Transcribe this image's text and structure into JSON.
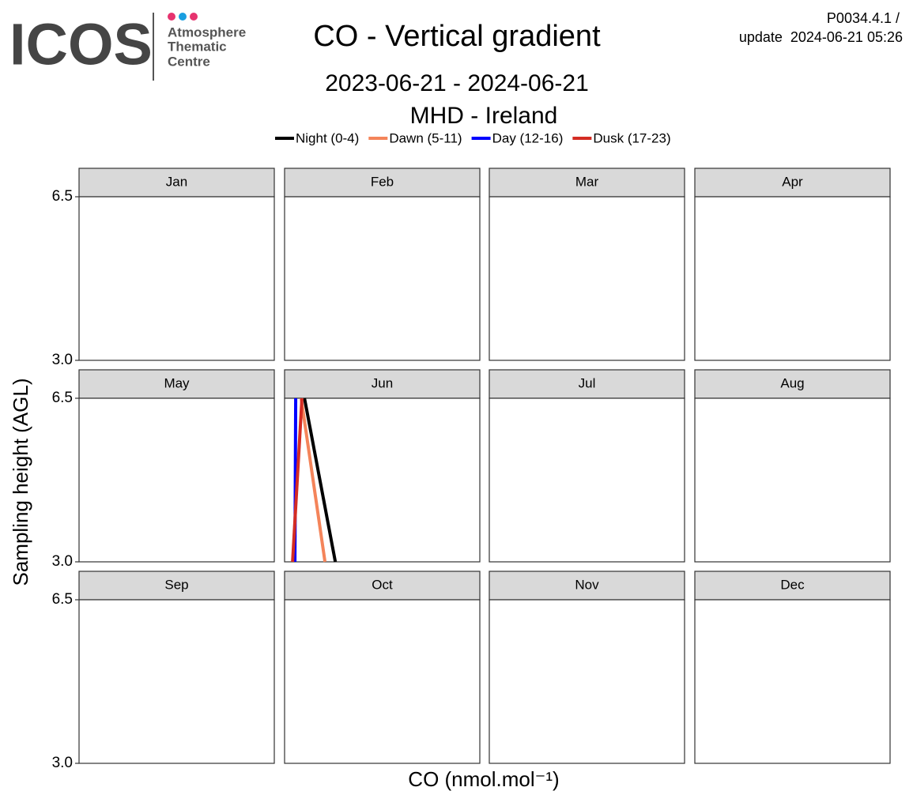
{
  "chart_data": {
    "type": "line",
    "title": "CO - Vertical gradient",
    "subtitle": "2023-06-21 - 2024-06-21",
    "site": "MHD - Ireland",
    "version": "P0034.4.1 /",
    "update": "update  2024-06-21 05:26",
    "logo": {
      "mark": "ICOS",
      "lines": [
        "Atmosphere",
        "Thematic",
        "Centre"
      ]
    },
    "xlabel": "CO (nmol.mol⁻¹)",
    "ylabel": "Sampling height (AGL)",
    "panels": [
      "Jan",
      "Feb",
      "Mar",
      "Apr",
      "May",
      "Jun",
      "Jul",
      "Aug",
      "Sep",
      "Oct",
      "Nov",
      "Dec"
    ],
    "xlim": [
      70,
      170
    ],
    "ylim": [
      3,
      6.5
    ],
    "yticks": [
      {
        "value": 3,
        "label": "3.0"
      },
      6.5
    ],
    "series": [
      {
        "name": "Night (0-4)",
        "color": "#000000",
        "panel": "Jun",
        "x": [
          80.2,
          96.0
        ],
        "y": [
          6.5,
          3
        ]
      },
      {
        "name": "Dawn (5-11)",
        "color": "#f4845a",
        "panel": "Jun",
        "x": [
          78.5,
          90.7
        ],
        "y": [
          6.5,
          3
        ]
      },
      {
        "name": "Day (12-16)",
        "color": "#0000ff",
        "panel": "Jun",
        "x": [
          75.7,
          75.3
        ],
        "y": [
          6.5,
          3
        ]
      },
      {
        "name": "Dusk (17-23)",
        "color": "#d42c23",
        "panel": "Jun",
        "x": [
          78.9,
          74.1
        ],
        "y": [
          6.5,
          3
        ]
      }
    ]
  }
}
